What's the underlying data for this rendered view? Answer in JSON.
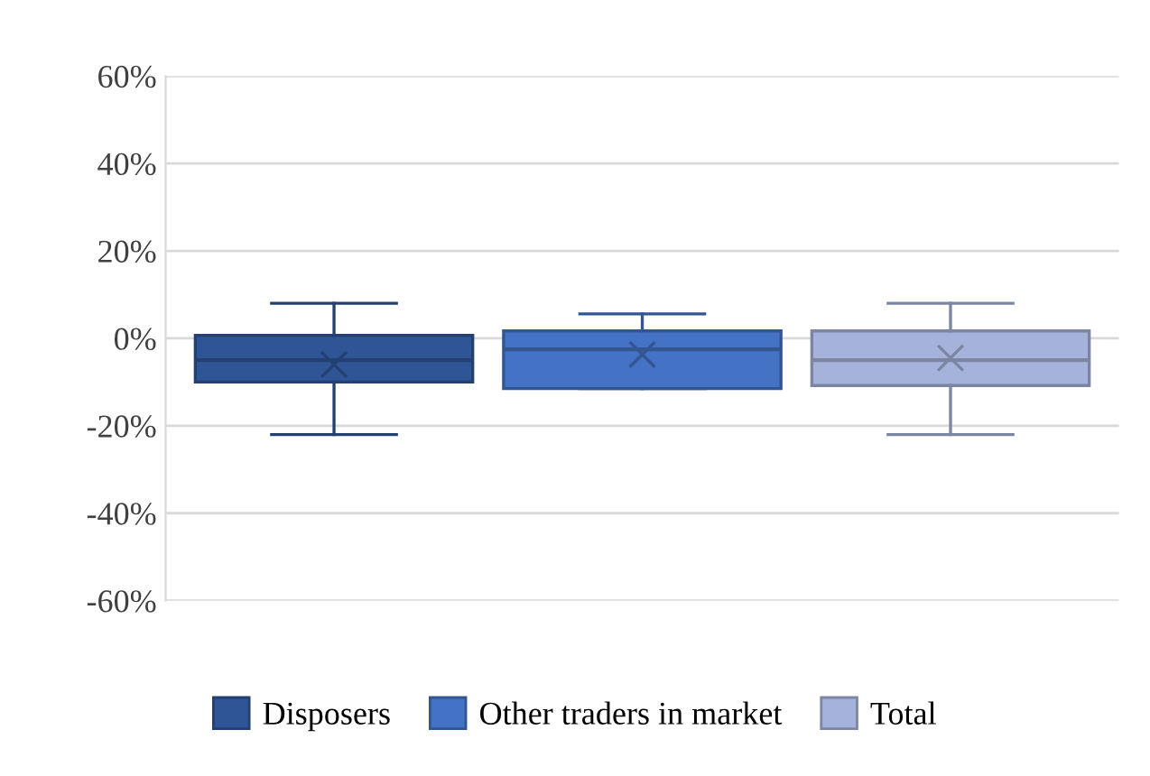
{
  "chart_data": {
    "type": "box",
    "categories": [
      null
    ],
    "series": [
      {
        "name": "Disposers",
        "color": "#2f5597",
        "boxes": [
          {
            "low": -22,
            "q1": -10,
            "median": -5,
            "q3": 0.7,
            "high": 8,
            "mean": -6
          }
        ]
      },
      {
        "name": "Other traders in market",
        "color": "#4472c4",
        "boxes": [
          {
            "low": -11.5,
            "q1": -11.5,
            "median": -2.5,
            "q3": 1.7,
            "high": 5.6,
            "mean": -3.7
          }
        ]
      },
      {
        "name": "Total",
        "color": "#a5b3da",
        "boxes": [
          {
            "low": -22,
            "q1": -10.8,
            "median": -5,
            "q3": 1.7,
            "high": 8,
            "mean": -4.5
          }
        ]
      }
    ],
    "ylim": [
      -60,
      60
    ],
    "yticks": [
      {
        "value": -60,
        "label": "-60%"
      },
      {
        "value": -40,
        "label": "-40%"
      },
      {
        "value": -20,
        "label": "-20%"
      },
      {
        "value": 0,
        "label": "0%"
      },
      {
        "value": 20,
        "label": "20%"
      },
      {
        "value": 40,
        "label": "40%"
      },
      {
        "value": 60,
        "label": "60%"
      }
    ],
    "grid": "y",
    "legend": "bottom"
  }
}
